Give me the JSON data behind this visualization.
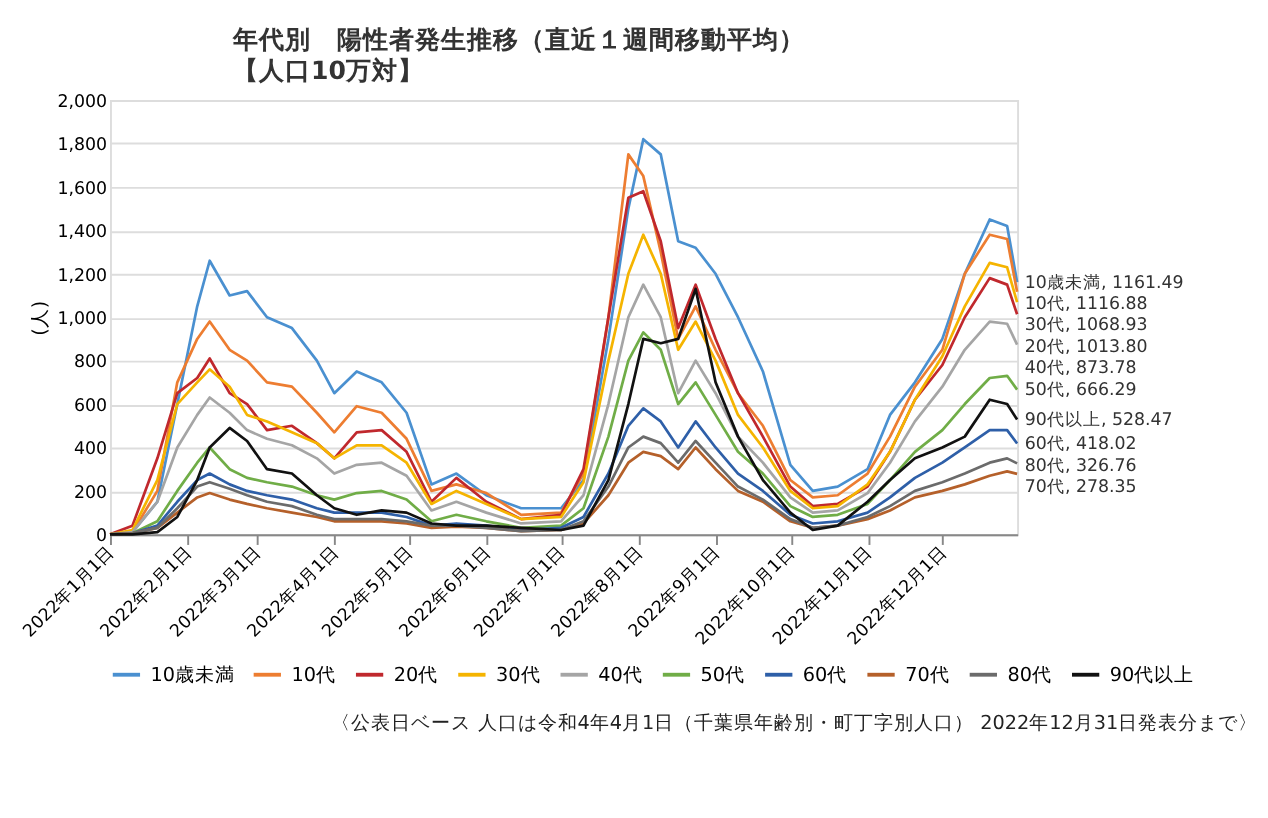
{
  "chart_data": {
    "type": "line",
    "title": "年代別　陽性者発生推移（直近１週間移動平均）",
    "subtitle": "【人口10万対】",
    "ylabel": "(人)",
    "x": [
      "2022-01-01",
      "2022-01-10",
      "2022-01-20",
      "2022-01-28",
      "2022-02-05",
      "2022-02-10",
      "2022-02-18",
      "2022-02-25",
      "2022-03-05",
      "2022-03-15",
      "2022-03-25",
      "2022-04-01",
      "2022-04-10",
      "2022-04-20",
      "2022-04-30",
      "2022-05-10",
      "2022-05-20",
      "2022-06-01",
      "2022-06-15",
      "2022-07-01",
      "2022-07-10",
      "2022-07-20",
      "2022-07-28",
      "2022-08-03",
      "2022-08-10",
      "2022-08-17",
      "2022-08-24",
      "2022-09-01",
      "2022-09-10",
      "2022-09-20",
      "2022-10-01",
      "2022-10-10",
      "2022-10-20",
      "2022-11-01",
      "2022-11-10",
      "2022-11-20",
      "2022-12-01",
      "2022-12-10",
      "2022-12-20",
      "2022-12-27",
      "2022-12-31"
    ],
    "series": [
      {
        "name": "10歳未満",
        "color": "#4a90d0",
        "values": [
          0,
          10,
          150,
          600,
          1050,
          1260,
          1100,
          1120,
          1000,
          950,
          800,
          650,
          750,
          700,
          560,
          230,
          280,
          180,
          120,
          120,
          250,
          900,
          1500,
          1820,
          1750,
          1350,
          1320,
          1200,
          1000,
          750,
          320,
          200,
          220,
          300,
          550,
          700,
          900,
          1200,
          1450,
          1420,
          1161.49
        ]
      },
      {
        "name": "10代",
        "color": "#ed7d31",
        "values": [
          0,
          10,
          200,
          700,
          900,
          980,
          850,
          800,
          700,
          680,
          560,
          470,
          590,
          560,
          440,
          200,
          230,
          190,
          90,
          100,
          280,
          1000,
          1750,
          1650,
          1300,
          900,
          1050,
          850,
          650,
          500,
          250,
          170,
          180,
          280,
          450,
          680,
          850,
          1200,
          1380,
          1360,
          1116.88
        ]
      },
      {
        "name": "20代",
        "color": "#c0282d",
        "values": [
          0,
          40,
          350,
          650,
          720,
          810,
          650,
          600,
          480,
          500,
          420,
          350,
          470,
          480,
          380,
          150,
          260,
          150,
          70,
          90,
          300,
          1000,
          1550,
          1580,
          1350,
          950,
          1150,
          900,
          650,
          450,
          220,
          130,
          140,
          220,
          380,
          620,
          780,
          1000,
          1180,
          1150,
          1013.8
        ]
      },
      {
        "name": "30代",
        "color": "#f5b400",
        "values": [
          0,
          20,
          250,
          600,
          700,
          760,
          680,
          550,
          520,
          470,
          420,
          350,
          410,
          410,
          330,
          140,
          200,
          140,
          70,
          80,
          240,
          800,
          1200,
          1380,
          1200,
          850,
          980,
          800,
          550,
          400,
          200,
          120,
          130,
          230,
          380,
          620,
          820,
          1050,
          1250,
          1230,
          1068.93
        ]
      },
      {
        "name": "40代",
        "color": "#a5a5a5",
        "values": [
          0,
          10,
          150,
          400,
          550,
          630,
          560,
          480,
          440,
          410,
          350,
          280,
          320,
          330,
          270,
          110,
          150,
          100,
          50,
          60,
          180,
          600,
          1000,
          1150,
          1000,
          650,
          800,
          650,
          450,
          330,
          170,
          100,
          110,
          190,
          330,
          520,
          680,
          850,
          980,
          970,
          873.78
        ]
      },
      {
        "name": "50代",
        "color": "#70ad47",
        "values": [
          0,
          5,
          60,
          200,
          330,
          400,
          300,
          260,
          240,
          220,
          180,
          160,
          190,
          200,
          160,
          60,
          90,
          60,
          30,
          40,
          120,
          450,
          800,
          930,
          850,
          600,
          700,
          550,
          380,
          280,
          130,
          80,
          90,
          140,
          250,
          380,
          480,
          600,
          720,
          730,
          666.29
        ]
      },
      {
        "name": "60代",
        "color": "#2e5fa8",
        "values": [
          0,
          5,
          40,
          150,
          250,
          280,
          230,
          200,
          180,
          160,
          120,
          100,
          100,
          100,
          80,
          40,
          50,
          40,
          20,
          30,
          80,
          280,
          500,
          580,
          520,
          400,
          520,
          400,
          280,
          200,
          90,
          50,
          60,
          100,
          170,
          260,
          330,
          400,
          480,
          480,
          418.02
        ]
      },
      {
        "name": "70代",
        "color": "#b5602a",
        "values": [
          0,
          5,
          30,
          100,
          170,
          190,
          160,
          140,
          120,
          100,
          80,
          60,
          60,
          60,
          50,
          30,
          35,
          30,
          15,
          20,
          50,
          180,
          330,
          380,
          360,
          300,
          400,
          300,
          200,
          150,
          60,
          30,
          40,
          70,
          110,
          170,
          200,
          230,
          270,
          290,
          278.35
        ]
      },
      {
        "name": "80代",
        "color": "#6b6b6b",
        "values": [
          0,
          5,
          30,
          120,
          220,
          240,
          210,
          180,
          150,
          130,
          90,
          70,
          70,
          70,
          60,
          40,
          40,
          30,
          15,
          20,
          60,
          220,
          400,
          450,
          420,
          330,
          430,
          330,
          220,
          160,
          70,
          30,
          40,
          80,
          130,
          200,
          240,
          280,
          330,
          350,
          326.76
        ]
      },
      {
        "name": "90代以上",
        "color": "#111111",
        "values": [
          0,
          0,
          10,
          80,
          250,
          400,
          490,
          430,
          300,
          280,
          180,
          120,
          90,
          110,
          100,
          50,
          40,
          40,
          30,
          20,
          40,
          250,
          600,
          900,
          880,
          900,
          1130,
          700,
          450,
          250,
          100,
          20,
          40,
          150,
          250,
          350,
          400,
          450,
          620,
          600,
          528.47
        ]
      }
    ],
    "xlim": [
      "2022-01-01",
      "2022-12-31"
    ],
    "xticks": [
      {
        "value": "2022-01-01",
        "label": "2022年1月1日"
      },
      {
        "value": "2022-02-01",
        "label": "2022年2月1日"
      },
      {
        "value": "2022-03-01",
        "label": "2022年3月1日"
      },
      {
        "value": "2022-04-01",
        "label": "2022年4月1日"
      },
      {
        "value": "2022-05-01",
        "label": "2022年5月1日"
      },
      {
        "value": "2022-06-01",
        "label": "2022年6月1日"
      },
      {
        "value": "2022-07-01",
        "label": "2022年7月1日"
      },
      {
        "value": "2022-08-01",
        "label": "2022年8月1日"
      },
      {
        "value": "2022-09-01",
        "label": "2022年9月1日"
      },
      {
        "value": "2022-10-01",
        "label": "2022年10月1日"
      },
      {
        "value": "2022-11-01",
        "label": "2022年11月1日"
      },
      {
        "value": "2022-12-01",
        "label": "2022年12月1日"
      }
    ],
    "ylim": [
      0,
      2000
    ],
    "yticks": [
      0,
      200,
      400,
      600,
      800,
      {
        "value": 1000,
        "label": "1,000"
      },
      {
        "value": 1200,
        "label": "1,200"
      },
      {
        "value": 1400,
        "label": "1,400"
      },
      {
        "value": 1600,
        "label": "1,600"
      },
      {
        "value": 1800,
        "label": "1,800"
      },
      {
        "value": 2000,
        "label": "2,000"
      }
    ],
    "grid": "y",
    "legend": "bottom",
    "annotations": [
      {
        "text": "10歳未満, 1161.49",
        "x": "2022-12-31",
        "y": 1161.49
      },
      {
        "text": "10代, 1116.88",
        "x": "2022-12-31",
        "y": 1116.88
      },
      {
        "text": "30代, 1068.93",
        "x": "2022-12-31",
        "y": 1068.93
      },
      {
        "text": "20代, 1013.80",
        "x": "2022-12-31",
        "y": 1013.8
      },
      {
        "text": "40代, 873.78",
        "x": "2022-12-31",
        "y": 873.78
      },
      {
        "text": "50代, 666.29",
        "x": "2022-12-31",
        "y": 666.29
      },
      {
        "text": "90代以上, 528.47",
        "x": "2022-12-31",
        "y": 528.47
      },
      {
        "text": "60代, 418.02",
        "x": "2022-12-31",
        "y": 418.02
      },
      {
        "text": "80代, 326.76",
        "x": "2022-12-31",
        "y": 326.76
      },
      {
        "text": "70代, 278.35",
        "x": "2022-12-31",
        "y": 278.35
      },
      "〈公表日ベース 人口は令和4年4月1日（千葉県年齢別・町丁字別人口） 2022年12月31日発表分まで〉"
    ]
  }
}
